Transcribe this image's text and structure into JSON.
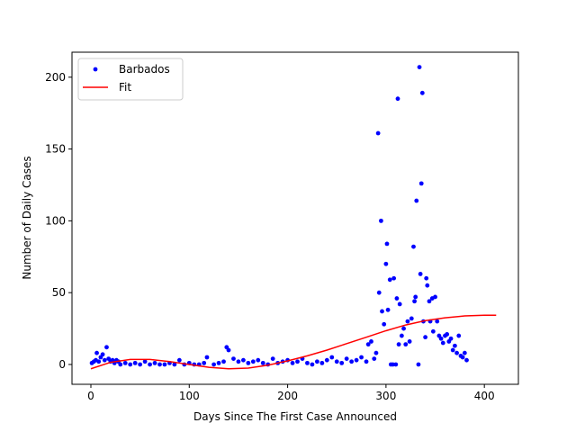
{
  "chart_data": {
    "type": "scatter",
    "x_label": "Days Since The First Case Announced",
    "y_label": "Number of Daily Cases",
    "xlim": [
      -19.2,
      434.6
    ],
    "ylim": [
      -13.8,
      217.4
    ],
    "xticks": [
      0,
      100,
      200,
      300,
      400
    ],
    "yticks": [
      0,
      50,
      100,
      150,
      200
    ],
    "legend": "upper left",
    "series": [
      {
        "name": "Barbados",
        "color": "#0000ff",
        "type": "scatter",
        "x": [
          1,
          3,
          5,
          6,
          8,
          10,
          12,
          14,
          16,
          18,
          20,
          22,
          24,
          26,
          28,
          30,
          35,
          40,
          45,
          50,
          55,
          60,
          65,
          70,
          75,
          80,
          85,
          90,
          95,
          100,
          105,
          110,
          115,
          118,
          125,
          130,
          135,
          138,
          140,
          145,
          150,
          155,
          160,
          165,
          170,
          175,
          180,
          185,
          190,
          195,
          200,
          205,
          210,
          215,
          220,
          225,
          230,
          235,
          240,
          245,
          250,
          255,
          260,
          265,
          270,
          275,
          280,
          282,
          285,
          288,
          290,
          292,
          293,
          295,
          296,
          298,
          300,
          301,
          302,
          304,
          305,
          307,
          308,
          310,
          311,
          312,
          313,
          314,
          316,
          318,
          320,
          322,
          324,
          326,
          328,
          329,
          330,
          331,
          333,
          334,
          335,
          336,
          337,
          338,
          340,
          341,
          342,
          344,
          345,
          347,
          348,
          350,
          352,
          354,
          356,
          358,
          360,
          362,
          364,
          366,
          368,
          370,
          372,
          374,
          376,
          378,
          380,
          382
        ],
        "values": [
          1,
          2,
          3,
          8,
          2,
          5,
          7,
          3,
          12,
          4,
          2,
          3,
          1,
          3,
          2,
          0,
          1,
          0,
          1,
          0,
          2,
          0,
          1,
          0,
          0,
          1,
          0,
          3,
          0,
          1,
          0,
          0,
          1,
          5,
          0,
          1,
          2,
          12,
          10,
          4,
          2,
          3,
          1,
          2,
          3,
          1,
          0,
          4,
          1,
          2,
          3,
          1,
          2,
          4,
          1,
          0,
          2,
          1,
          3,
          5,
          2,
          1,
          4,
          2,
          3,
          5,
          2,
          14,
          16,
          4,
          8,
          161,
          50,
          100,
          37,
          28,
          70,
          84,
          38,
          59,
          0,
          0,
          60,
          0,
          46,
          185,
          14,
          42,
          20,
          25,
          14,
          30,
          16,
          32,
          82,
          44,
          47,
          114,
          0,
          207,
          63,
          126,
          189,
          30,
          19,
          60,
          55,
          44,
          30,
          46,
          23,
          47,
          30,
          20,
          18,
          15,
          20,
          21,
          16,
          18,
          10,
          13,
          8,
          20,
          6,
          5,
          8,
          3
        ]
      },
      {
        "name": "Fit",
        "color": "#ff0000",
        "type": "line",
        "x": [
          0,
          20,
          40,
          60,
          80,
          100,
          120,
          140,
          160,
          180,
          200,
          220,
          240,
          260,
          280,
          300,
          320,
          340,
          360,
          380,
          400,
          412
        ],
        "values": [
          -3,
          1.5,
          3.5,
          3.5,
          2,
          0,
          -2,
          -3,
          -2.5,
          -0.5,
          2.5,
          6,
          10,
          14.5,
          19,
          23.5,
          27.5,
          30.5,
          32.5,
          33.8,
          34.3,
          34.3
        ]
      }
    ]
  }
}
